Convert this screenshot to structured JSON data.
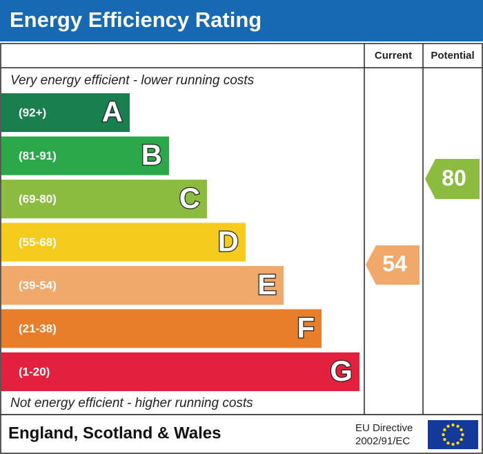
{
  "header": {
    "title": "Energy Efficiency Rating"
  },
  "columns": {
    "current": "Current",
    "potential": "Potential"
  },
  "top_note": "Very energy efficient - lower running costs",
  "bands": [
    {
      "range": "(92+)",
      "letter": "A",
      "color": "#1a7f4e"
    },
    {
      "range": "(81-91)",
      "letter": "B",
      "color": "#2aa84a"
    },
    {
      "range": "(69-80)",
      "letter": "C",
      "color": "#8cbc3f"
    },
    {
      "range": "(55-68)",
      "letter": "D",
      "color": "#f5cc1e"
    },
    {
      "range": "(39-54)",
      "letter": "E",
      "color": "#f0a96a"
    },
    {
      "range": "(21-38)",
      "letter": "F",
      "color": "#e87d2a"
    },
    {
      "range": "(1-20)",
      "letter": "G",
      "color": "#e3203d"
    }
  ],
  "bottom_note": "Not energy efficient - higher running costs",
  "current": {
    "value": 54,
    "color": "#f0a96a"
  },
  "potential": {
    "value": 80,
    "color": "#8cbc3f"
  },
  "footer": {
    "region": "England, Scotland & Wales",
    "directive": "EU Directive",
    "code": "2002/91/EC"
  }
}
